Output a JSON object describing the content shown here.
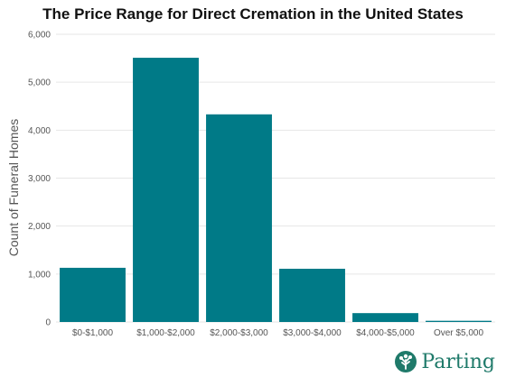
{
  "chart_data": {
    "type": "bar",
    "title": "The Price Range for Direct Cremation in the United States",
    "xlabel": "",
    "ylabel": "Count of Funeral  Homes",
    "categories": [
      "$0-$1,000",
      "$1,000-$2,000",
      "$2,000-$3,000",
      "$3,000-$4,000",
      "$4,000-$5,000",
      "Over $5,000"
    ],
    "values": [
      1130,
      5510,
      4330,
      1110,
      185,
      25
    ],
    "ylim": [
      0,
      6000
    ],
    "yticks": [
      0,
      1000,
      2000,
      3000,
      4000,
      5000,
      6000
    ],
    "ytick_labels": [
      "0",
      "1,000",
      "2,000",
      "3,000",
      "4,000",
      "5,000",
      "6,000"
    ],
    "grid": true,
    "legend": false,
    "colors": {
      "bar": "#007a87",
      "grid": "#e6e6e6",
      "panel": "#ffffff"
    }
  },
  "brand": {
    "name": "Parting",
    "icon": "tree-logo-icon",
    "color": "#1f7a6a"
  }
}
